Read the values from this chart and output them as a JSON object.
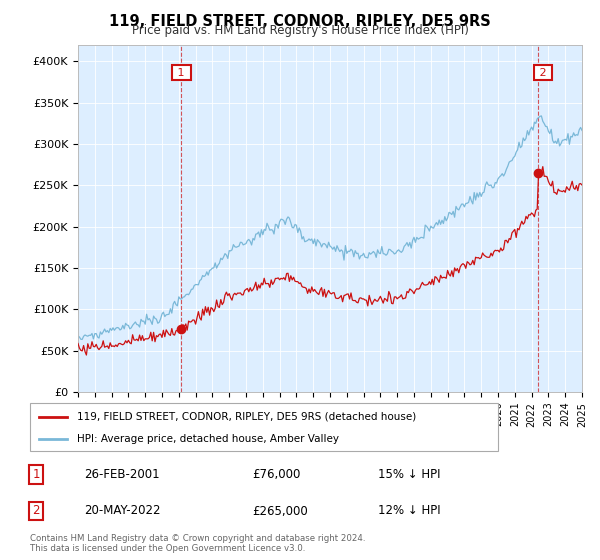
{
  "title": "119, FIELD STREET, CODNOR, RIPLEY, DE5 9RS",
  "subtitle": "Price paid vs. HM Land Registry's House Price Index (HPI)",
  "ylim": [
    0,
    420000
  ],
  "yticks": [
    0,
    50000,
    100000,
    150000,
    200000,
    250000,
    300000,
    350000,
    400000
  ],
  "ytick_labels": [
    "£0",
    "£50K",
    "£100K",
    "£150K",
    "£200K",
    "£250K",
    "£300K",
    "£350K",
    "£400K"
  ],
  "background_color": "#ffffff",
  "plot_bg_color": "#ddeeff",
  "grid_color": "#ffffff",
  "hpi_color": "#7ab8d8",
  "price_color": "#cc1111",
  "ann1_x": 2001.15,
  "ann1_y": 76000,
  "ann1_label": "1",
  "ann1_date": "26-FEB-2001",
  "ann1_price": "£76,000",
  "ann1_note": "15% ↓ HPI",
  "ann2_x": 2022.38,
  "ann2_y": 265000,
  "ann2_label": "2",
  "ann2_date": "20-MAY-2022",
  "ann2_price": "£265,000",
  "ann2_note": "12% ↓ HPI",
  "legend_label1": "119, FIELD STREET, CODNOR, RIPLEY, DE5 9RS (detached house)",
  "legend_label2": "HPI: Average price, detached house, Amber Valley",
  "footer": "Contains HM Land Registry data © Crown copyright and database right 2024.\nThis data is licensed under the Open Government Licence v3.0.",
  "xmin": 1995,
  "xmax": 2025
}
